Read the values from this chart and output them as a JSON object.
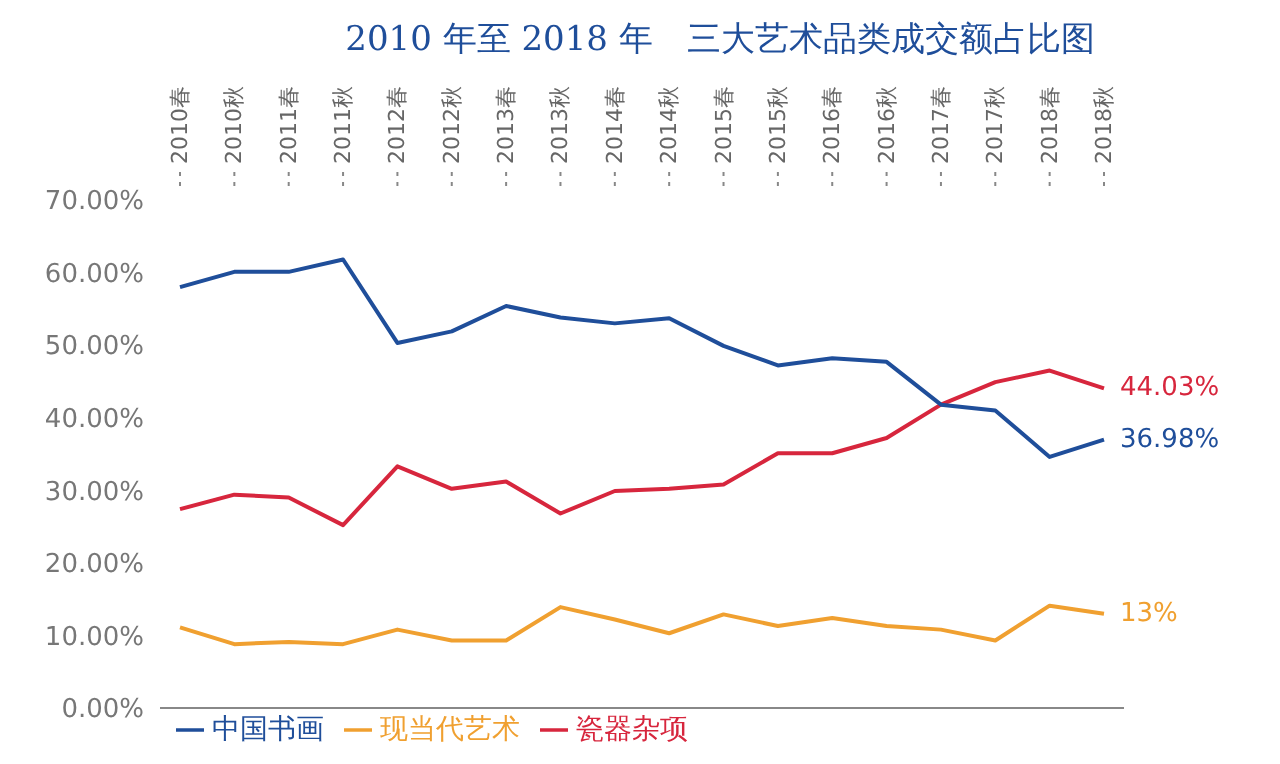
{
  "chart_data": {
    "type": "line",
    "title": "2010 年至 2018 年　三大艺术品类成交额占比图",
    "categories": [
      "2010春",
      "2010秋",
      "2011春",
      "2011秋",
      "2012春",
      "2012秋",
      "2013春",
      "2013秋",
      "2014春",
      "2014秋",
      "2015春",
      "2015秋",
      "2016春",
      "2016秋",
      "2017春",
      "2017秋",
      "2018春",
      "2018秋"
    ],
    "series": [
      {
        "name": "瓷器杂项",
        "color": "#d7263d",
        "values": [
          27.4,
          29.4,
          29.0,
          25.2,
          33.3,
          30.2,
          31.2,
          26.8,
          29.9,
          30.2,
          30.8,
          35.1,
          35.1,
          37.2,
          41.8,
          44.9,
          46.5,
          44.03
        ],
        "value_labels": [
          null,
          null,
          null,
          null,
          null,
          null,
          null,
          null,
          null,
          null,
          null,
          null,
          null,
          null,
          null,
          null,
          null,
          "44.03%"
        ]
      },
      {
        "name": "中国书画",
        "color": "#1f4e9a",
        "values": [
          58.0,
          60.1,
          60.1,
          61.8,
          50.3,
          51.9,
          55.4,
          53.8,
          53.0,
          53.7,
          49.9,
          47.2,
          48.2,
          47.7,
          41.8,
          41.0,
          34.6,
          36.98
        ],
        "value_labels": [
          null,
          null,
          null,
          null,
          null,
          null,
          null,
          null,
          null,
          null,
          null,
          null,
          null,
          null,
          null,
          null,
          null,
          "36.98%"
        ]
      },
      {
        "name": "现当代艺术",
        "color": "#f0a030",
        "values": [
          11.1,
          8.8,
          9.1,
          8.8,
          10.8,
          9.3,
          9.3,
          13.9,
          12.2,
          10.3,
          12.9,
          11.3,
          12.4,
          11.3,
          10.8,
          9.3,
          14.1,
          13
        ],
        "value_labels": [
          null,
          null,
          null,
          null,
          null,
          null,
          null,
          null,
          null,
          null,
          null,
          null,
          null,
          null,
          null,
          null,
          null,
          "13%"
        ]
      }
    ],
    "ylim": [
      0,
      70
    ],
    "yticks": [
      {
        "value": 0,
        "label": "0.00%"
      },
      {
        "value": 10,
        "label": "10.00%"
      },
      {
        "value": 20,
        "label": "20.00%"
      },
      {
        "value": 30,
        "label": "30.00%"
      },
      {
        "value": 40,
        "label": "40.00%"
      },
      {
        "value": 50,
        "label": "50.00%"
      },
      {
        "value": 60,
        "label": "60.00%"
      },
      {
        "value": 70,
        "label": "70.00%"
      }
    ],
    "grid": false,
    "legend": "bottom",
    "marker": "none",
    "line_style": "solid"
  }
}
